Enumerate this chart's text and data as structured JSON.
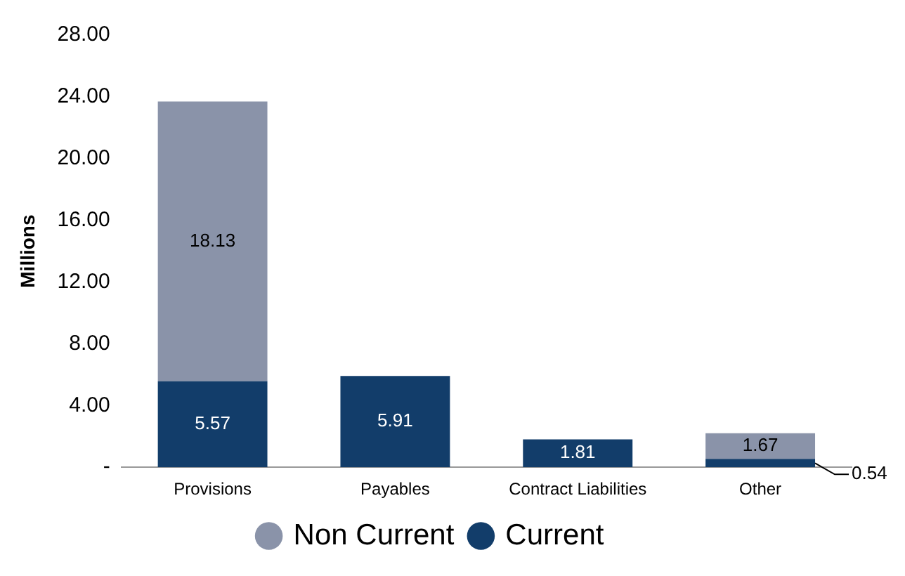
{
  "chart_data": {
    "type": "bar",
    "stacked": true,
    "ylabel": "Millions",
    "categories": [
      "Provisions",
      "Payables",
      "Contract Liabilities",
      "Other"
    ],
    "series": [
      {
        "name": "Current",
        "color": "#123d6a",
        "values": [
          5.57,
          5.91,
          1.81,
          0.54
        ]
      },
      {
        "name": "Non Current",
        "color": "#8a93a9",
        "values": [
          18.13,
          null,
          null,
          1.67
        ]
      }
    ],
    "ylim": [
      0,
      28
    ],
    "yticks": [
      {
        "value": 0,
        "label": "-"
      },
      {
        "value": 4,
        "label": "4.00"
      },
      {
        "value": 8,
        "label": "8.00"
      },
      {
        "value": 12,
        "label": "12.00"
      },
      {
        "value": 16,
        "label": "16.00"
      },
      {
        "value": 20,
        "label": "20.00"
      },
      {
        "value": 24,
        "label": "24.00"
      },
      {
        "value": 28,
        "label": "28.00"
      }
    ],
    "grid": false,
    "legend": "bottom",
    "data_labels": true
  }
}
